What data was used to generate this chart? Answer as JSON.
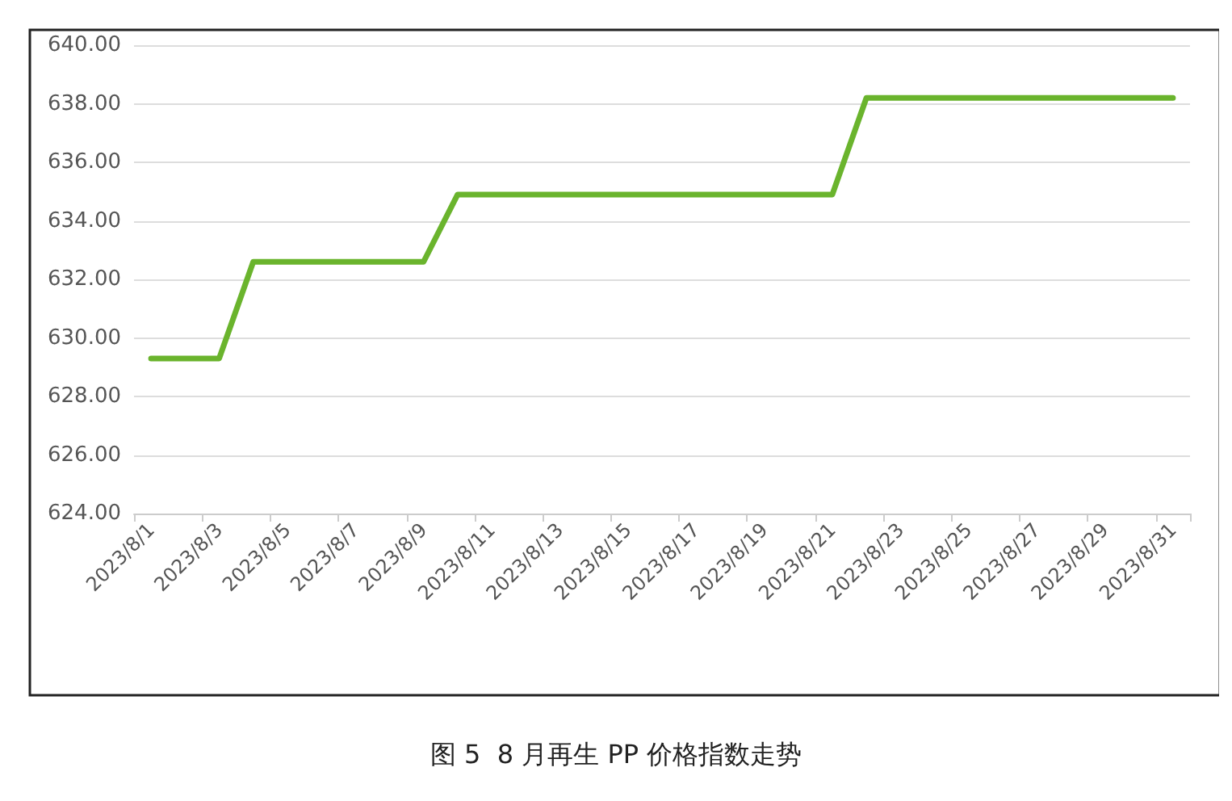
{
  "chart_data": {
    "type": "line",
    "categories": [
      "2023/8/1",
      null,
      "2023/8/3",
      null,
      "2023/8/5",
      null,
      "2023/8/7",
      null,
      "2023/8/9",
      null,
      "2023/8/11",
      null,
      "2023/8/13",
      null,
      "2023/8/15",
      null,
      "2023/8/17",
      null,
      "2023/8/19",
      null,
      "2023/8/21",
      null,
      "2023/8/23",
      null,
      "2023/8/25",
      null,
      "2023/8/27",
      null,
      "2023/8/29",
      null,
      "2023/8/31"
    ],
    "series": [
      {
        "color": "#6ab42d",
        "values": [
          629.3,
          629.3,
          629.3,
          632.6,
          632.6,
          632.6,
          632.6,
          632.6,
          632.6,
          634.9,
          634.9,
          634.9,
          634.9,
          634.9,
          634.9,
          634.9,
          634.9,
          634.9,
          634.9,
          634.9,
          634.9,
          638.2,
          638.2,
          638.2,
          638.2,
          638.2,
          638.2,
          638.2,
          638.2,
          638.2,
          638.2
        ]
      }
    ],
    "ylim": [
      624,
      640
    ],
    "yticks": [
      {
        "value": 624,
        "label": "624.00"
      },
      {
        "value": 626,
        "label": "626.00"
      },
      {
        "value": 628,
        "label": "628.00"
      },
      {
        "value": 630,
        "label": "630.00"
      },
      {
        "value": 632,
        "label": "632.00"
      },
      {
        "value": 634,
        "label": "634.00"
      },
      {
        "value": 636,
        "label": "636.00"
      },
      {
        "value": 638,
        "label": "638.00"
      },
      {
        "value": 640,
        "label": "640.00"
      }
    ],
    "grid": "y",
    "marker": "none",
    "line_style": "solid",
    "annotations": [
      "图 5  8 月再生 PP 价格指数走势"
    ]
  }
}
